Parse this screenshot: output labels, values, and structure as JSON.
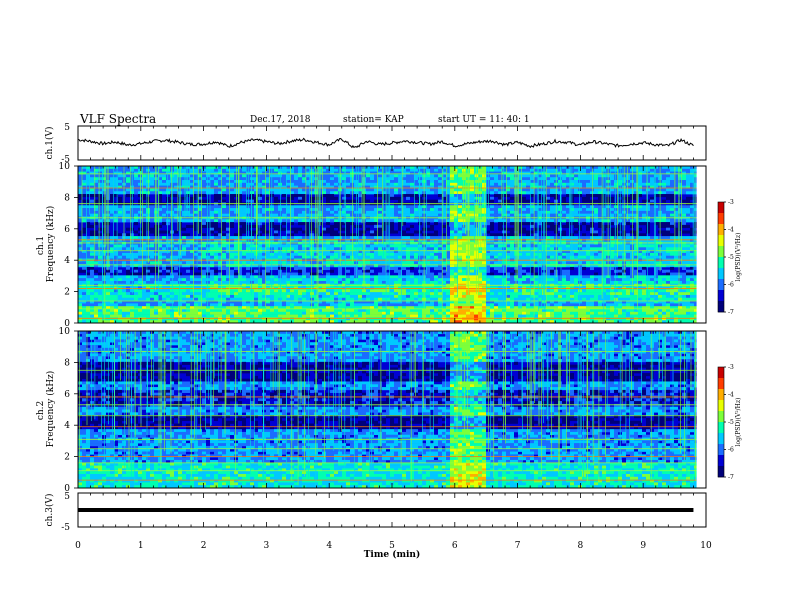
{
  "header": {
    "title": "VLF Spectra",
    "date": "Dec.17, 2018",
    "station": "station= KAP",
    "start": "start  UT =   11: 40: 1"
  },
  "colors": {
    "frame": "#000000",
    "colormap": [
      "#00007a",
      "#0000d4",
      "#1a6cff",
      "#00c8ff",
      "#00ffb0",
      "#7cff3a",
      "#e8ff00",
      "#ffae00",
      "#ff3c00",
      "#c80000"
    ]
  },
  "chart_data": [
    {
      "type": "line",
      "ylabel": "ch.1(V)",
      "ylim": [
        -5,
        5
      ],
      "yticks": [
        "5",
        "-5"
      ],
      "x": [
        0.0,
        0.2,
        0.4,
        0.6,
        0.8,
        1.0,
        1.2,
        1.4,
        1.6,
        1.8,
        2.0,
        2.2,
        2.4,
        2.6,
        2.8,
        3.0,
        3.2,
        3.4,
        3.6,
        3.8,
        4.0,
        4.2,
        4.4,
        4.6,
        4.8,
        5.0,
        5.2,
        5.4,
        5.6,
        5.8,
        6.0,
        6.2,
        6.4,
        6.6,
        6.8,
        7.0,
        7.2,
        7.4,
        7.6,
        7.8,
        8.0,
        8.2,
        8.4,
        8.6,
        8.8,
        9.0,
        9.2,
        9.4,
        9.6,
        9.8
      ],
      "values": [
        1.0,
        0.5,
        -0.2,
        0.3,
        -0.6,
        -0.2,
        0.5,
        0.8,
        0.2,
        -0.4,
        -0.3,
        0.4,
        -1.0,
        0.2,
        0.9,
        0.4,
        -0.2,
        0.6,
        1.0,
        0.2,
        -0.5,
        1.2,
        -1.5,
        0.5,
        -0.4,
        0.0,
        0.6,
        0.2,
        -0.3,
        0.4,
        -0.8,
        -0.2,
        0.4,
        0.6,
        -0.5,
        0.2,
        -0.9,
        -0.3,
        0.5,
        0.2,
        -0.6,
        0.4,
        -0.2,
        -0.8,
        -0.3,
        0.1,
        -0.5,
        -0.8,
        0.9,
        -0.8
      ]
    },
    {
      "type": "heatmap",
      "ylabel": "ch.1\nFrequency (kHz)",
      "ylim": [
        0,
        10
      ],
      "yticks": [
        "0",
        "2",
        "4",
        "6",
        "8",
        "10"
      ],
      "colorbar": {
        "label": "log(PSD)(V²/Hz)",
        "range": [
          -7,
          -3
        ],
        "ticks": [
          "-3",
          "-4",
          "-5",
          "-6",
          "-7"
        ]
      }
    },
    {
      "type": "heatmap",
      "ylabel": "ch.2\nFrequency (kHz)",
      "ylim": [
        0,
        10
      ],
      "yticks": [
        "0",
        "2",
        "4",
        "6",
        "8",
        "10"
      ],
      "colorbar": {
        "label": "log(PSD)(V²/Hz)",
        "range": [
          -7,
          -3
        ],
        "ticks": [
          "-3",
          "-4",
          "-5",
          "-6",
          "-7"
        ]
      }
    },
    {
      "type": "line",
      "ylabel": "ch.3(V)",
      "ylim": [
        -5,
        5
      ],
      "yticks": [
        "5",
        "-5"
      ],
      "x": [
        0,
        9.8
      ],
      "values": [
        0,
        0
      ]
    }
  ],
  "xaxis": {
    "label": "Time  (min)",
    "range": [
      0,
      10
    ],
    "ticks": [
      "0",
      "1",
      "2",
      "3",
      "4",
      "5",
      "6",
      "7",
      "8",
      "9",
      "10"
    ]
  }
}
